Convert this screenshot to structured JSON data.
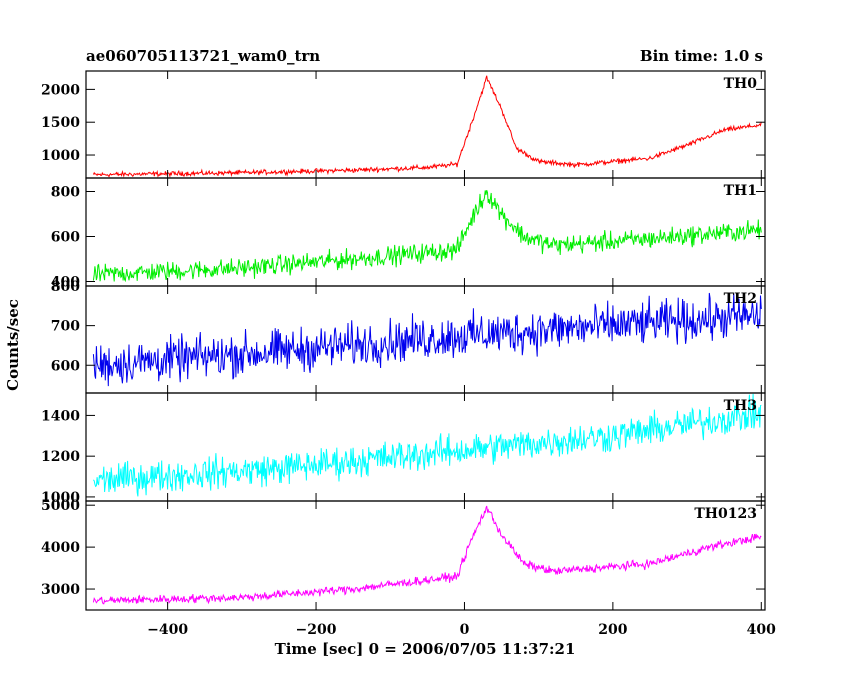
{
  "chart_data": {
    "type": "line",
    "title": "ae060705113721_wam0_trn",
    "subtitle": "Bin time: 1.0 s",
    "xlabel": "Time [sec] 0 = 2006/07/05 11:37:21",
    "ylabel": "Counts/sec",
    "xlim": [
      -510,
      405
    ],
    "x_ticks": [
      -400,
      -200,
      0,
      200,
      400
    ],
    "x_tick_labels": [
      "−400",
      "−200",
      "0",
      "200",
      "400"
    ],
    "grid": false,
    "panels": [
      {
        "name": "TH0",
        "color": "#ff0000",
        "ylim": [
          650,
          2280
        ],
        "y_ticks": [
          1000,
          1500,
          2000
        ],
        "y_tick_labels": [
          "1000",
          "1500",
          "2000"
        ],
        "noise": 25,
        "series": [
          {
            "x": -500,
            "y": 700
          },
          {
            "x": -300,
            "y": 730
          },
          {
            "x": -150,
            "y": 770
          },
          {
            "x": -50,
            "y": 810
          },
          {
            "x": -10,
            "y": 860
          },
          {
            "x": 10,
            "y": 1500
          },
          {
            "x": 30,
            "y": 2180
          },
          {
            "x": 50,
            "y": 1700
          },
          {
            "x": 70,
            "y": 1100
          },
          {
            "x": 100,
            "y": 900
          },
          {
            "x": 150,
            "y": 850
          },
          {
            "x": 250,
            "y": 950
          },
          {
            "x": 300,
            "y": 1150
          },
          {
            "x": 350,
            "y": 1380
          },
          {
            "x": 400,
            "y": 1460
          }
        ]
      },
      {
        "name": "TH1",
        "color": "#00ee00",
        "ylim": [
          380,
          860
        ],
        "y_ticks": [
          400,
          600,
          800
        ],
        "y_tick_labels": [
          "400",
          "600",
          "800"
        ],
        "noise": 30,
        "series": [
          {
            "x": -500,
            "y": 430
          },
          {
            "x": -300,
            "y": 460
          },
          {
            "x": -150,
            "y": 500
          },
          {
            "x": -10,
            "y": 540
          },
          {
            "x": 10,
            "y": 680
          },
          {
            "x": 30,
            "y": 800
          },
          {
            "x": 50,
            "y": 700
          },
          {
            "x": 80,
            "y": 600
          },
          {
            "x": 120,
            "y": 560
          },
          {
            "x": 250,
            "y": 590
          },
          {
            "x": 400,
            "y": 630
          }
        ]
      },
      {
        "name": "TH2",
        "color": "#0000ee",
        "ylim": [
          530,
          800
        ],
        "y_ticks": [
          600,
          700,
          800
        ],
        "y_tick_labels": [
          "600",
          "700",
          "800"
        ],
        "noise": 38,
        "series": [
          {
            "x": -500,
            "y": 600
          },
          {
            "x": -250,
            "y": 635
          },
          {
            "x": 0,
            "y": 675
          },
          {
            "x": 200,
            "y": 700
          },
          {
            "x": 400,
            "y": 725
          }
        ]
      },
      {
        "name": "TH3",
        "color": "#00ffff",
        "ylim": [
          980,
          1510
        ],
        "y_ticks": [
          1000,
          1200,
          1400
        ],
        "y_tick_labels": [
          "1000",
          "1200",
          "1400"
        ],
        "noise": 55,
        "series": [
          {
            "x": -500,
            "y": 1080
          },
          {
            "x": -250,
            "y": 1140
          },
          {
            "x": 0,
            "y": 1230
          },
          {
            "x": 200,
            "y": 1300
          },
          {
            "x": 400,
            "y": 1410
          }
        ]
      },
      {
        "name": "TH0123",
        "color": "#ff00ff",
        "ylim": [
          2500,
          5100
        ],
        "y_ticks": [
          3000,
          4000,
          5000
        ],
        "y_tick_labels": [
          "3000",
          "4000",
          "5000"
        ],
        "noise": 70,
        "series": [
          {
            "x": -500,
            "y": 2720
          },
          {
            "x": -300,
            "y": 2800
          },
          {
            "x": -150,
            "y": 3000
          },
          {
            "x": -10,
            "y": 3300
          },
          {
            "x": 10,
            "y": 4200
          },
          {
            "x": 30,
            "y": 4950
          },
          {
            "x": 50,
            "y": 4300
          },
          {
            "x": 80,
            "y": 3600
          },
          {
            "x": 120,
            "y": 3420
          },
          {
            "x": 250,
            "y": 3600
          },
          {
            "x": 330,
            "y": 4000
          },
          {
            "x": 400,
            "y": 4250
          }
        ]
      }
    ]
  }
}
